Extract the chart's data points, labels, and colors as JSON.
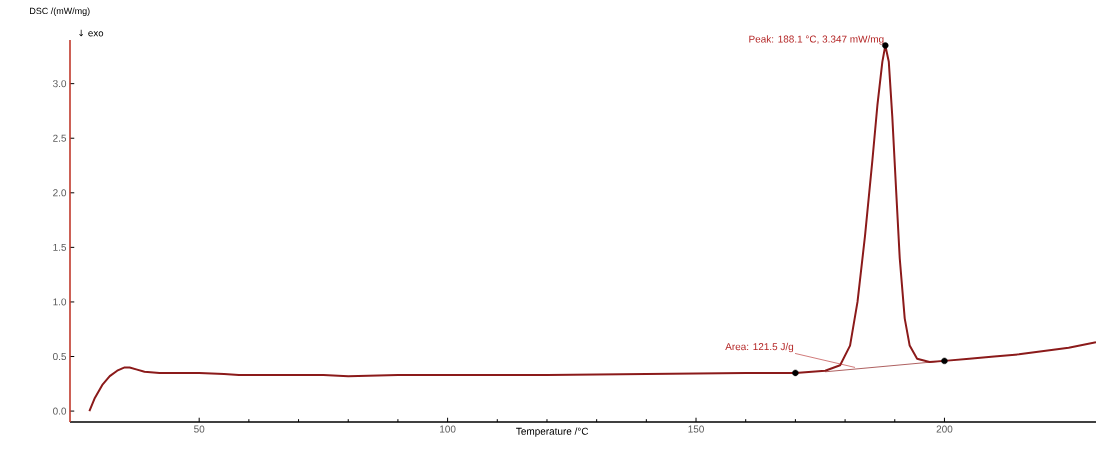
{
  "chart_data": {
    "type": "line",
    "xlabel": "Temperature /°C",
    "ylabel": "DSC /(mW/mg)",
    "annotations": [
      "↓ exo",
      {
        "text": "Peak: 188.1 °C, 3.347 mW/mg",
        "x": 188.1,
        "y": 3.347
      },
      {
        "text": "Area: 121.5 J/g",
        "x": 182,
        "y": 0.4
      }
    ],
    "xlim": [
      24,
      230.5
    ],
    "ylim": [
      -0.1,
      3.4
    ],
    "xticks": [
      50,
      100,
      150,
      200
    ],
    "yticks": [
      {
        "value": 0,
        "label": "0.0"
      },
      {
        "value": 0.5,
        "label": "0.5"
      },
      {
        "value": 1,
        "label": "1.0"
      },
      {
        "value": 1.5,
        "label": "1.5"
      },
      {
        "value": 2,
        "label": "2.0"
      },
      {
        "value": 2.5,
        "label": "2.5"
      },
      {
        "value": 3,
        "label": "3.0"
      }
    ],
    "grid": false,
    "series": [
      {
        "color": "#8b1a1a",
        "x": [
          27.9,
          29,
          30.5,
          32,
          33.5,
          35,
          36,
          37.5,
          39,
          42,
          50,
          55,
          58,
          65,
          75,
          80,
          90,
          100,
          120,
          140,
          160,
          170,
          176,
          179,
          181,
          182.5,
          184,
          185.5,
          186.5,
          187.5,
          188.1,
          188.8,
          189.5,
          190.3,
          191,
          192,
          193,
          194.5,
          197,
          200,
          205,
          210,
          215,
          220,
          225,
          230.5
        ],
        "values": [
          0,
          0.12,
          0.24,
          0.32,
          0.37,
          0.4,
          0.4,
          0.38,
          0.36,
          0.35,
          0.35,
          0.34,
          0.33,
          0.33,
          0.33,
          0.32,
          0.33,
          0.33,
          0.33,
          0.34,
          0.35,
          0.35,
          0.37,
          0.42,
          0.6,
          1.0,
          1.6,
          2.3,
          2.8,
          3.2,
          3.35,
          3.2,
          2.7,
          2.0,
          1.4,
          0.85,
          0.6,
          0.48,
          0.45,
          0.46,
          0.48,
          0.5,
          0.52,
          0.55,
          0.58,
          0.63
        ]
      },
      {
        "type": "line",
        "color": "#8b1a1a",
        "x": [
          176,
          200
        ],
        "values": [
          0.36,
          0.46
        ]
      },
      {
        "type": "scatter",
        "color": "#000000",
        "marker": "circle",
        "x": [
          170,
          188.1,
          200
        ],
        "values": [
          0.35,
          3.35,
          0.46
        ]
      }
    ]
  }
}
